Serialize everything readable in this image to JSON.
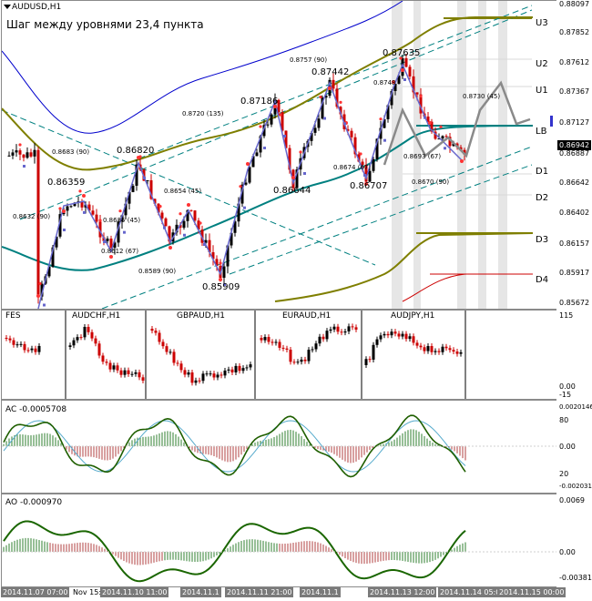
{
  "window": {
    "title": "AUDUSD,H1",
    "note": "Шаг между уровнями 23,4 пункта"
  },
  "main_panel": {
    "price_labels": [
      "0.88097",
      "0.87852",
      "0.87612",
      "0.87367",
      "0.87127",
      "0.86887",
      "0.86642",
      "0.86402",
      "0.86157",
      "0.85917",
      "0.85672"
    ],
    "current_price": "0.86942",
    "levels": [
      {
        "name": "U3"
      },
      {
        "name": "U2"
      },
      {
        "name": "U1"
      },
      {
        "name": "LB"
      },
      {
        "name": "D1"
      },
      {
        "name": "D2"
      },
      {
        "name": "D3"
      },
      {
        "name": "D4"
      }
    ],
    "swing_labels": [
      {
        "text": "0.86359"
      },
      {
        "text": "0.86820"
      },
      {
        "text": "0.85909"
      },
      {
        "text": "0.87186"
      },
      {
        "text": "0.86644"
      },
      {
        "text": "0.87442"
      },
      {
        "text": "0.86707"
      },
      {
        "text": "0.87635"
      }
    ],
    "fib_labels": [
      {
        "text": "0.8683 (90)"
      },
      {
        "text": "0.8632 (90)"
      },
      {
        "text": "0.8635 (45)"
      },
      {
        "text": "0.8612 (67)"
      },
      {
        "text": "0.8589 (90)"
      },
      {
        "text": "0.8654 (45)"
      },
      {
        "text": "0.8720 (135)"
      },
      {
        "text": "0.8757 (90)"
      },
      {
        "text": "0.8674 (67)"
      },
      {
        "text": "0.8748"
      },
      {
        "text": "0.8693 (67)"
      },
      {
        "text": "0.8670 (90)"
      },
      {
        "text": "0.8730 (45)"
      }
    ]
  },
  "fes_panel": {
    "title": "FES",
    "symbols": [
      {
        "name": "AUDCHF,H1"
      },
      {
        "name": "GBPAUD,H1"
      },
      {
        "name": "EURAUD,H1"
      },
      {
        "name": "AUDJPY,H1"
      }
    ],
    "axis_labels": [
      "115",
      "0.00",
      "-15"
    ]
  },
  "ac_panel": {
    "title": "AC -0.0005708",
    "axis_labels": [
      "0.0020146",
      "80",
      "0.00",
      "20",
      "-0.0020317"
    ]
  },
  "ao_panel": {
    "title": "AO -0.000970",
    "axis_labels": [
      "0.0069",
      "0.00",
      "-0.00381"
    ]
  },
  "time_axis": {
    "labels": [
      "2014.11.07 07:00",
      "Nov 15:",
      "2014.11.10 11:00",
      "2014.11.1",
      "2014.11.11 21:00",
      "2014.11.1",
      "2014.11.13 12:00",
      "2014.11.14 05:00",
      "2014.11.15 00:00"
    ]
  },
  "colors": {
    "bull": "#000000",
    "bear": "#cc0000",
    "envelope": "#7f7f00",
    "middle": "#008080",
    "upper_blue": "#0000cc",
    "zigzag": "#6666cc",
    "ac_line": "#1f5f00",
    "ac_signal": "#55aacc"
  }
}
